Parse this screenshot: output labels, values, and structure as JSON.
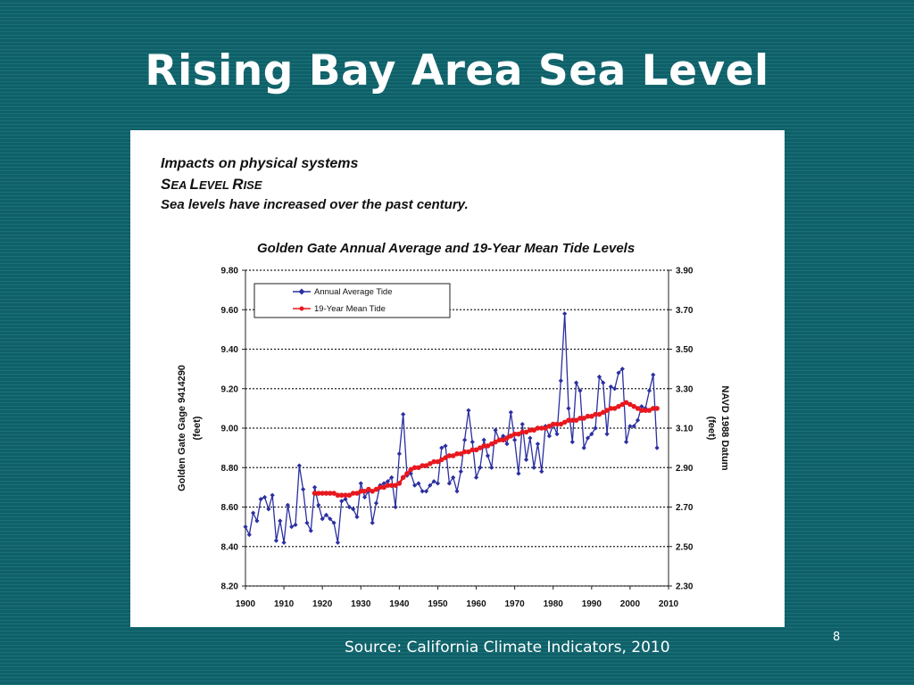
{
  "slide": {
    "title": "Rising Bay Area Sea Level",
    "source": "Source: California Climate Indicators, 2010",
    "page_number": "8"
  },
  "panel": {
    "heading1": "Impacts on physical systems",
    "heading2_part1": "S",
    "heading2_part2": "EA ",
    "heading2_part3": "L",
    "heading2_part4": "EVEL ",
    "heading2_part5": "R",
    "heading2_part6": "ISE",
    "subheading": "Sea levels have increased over the past century."
  },
  "colors": {
    "background": "#0f6068",
    "annual_series": "#2b2fa0",
    "mean_series": "#e8181e"
  },
  "chart_data": {
    "type": "line",
    "title": "Golden Gate Annual Average and 19-Year Mean Tide Levels",
    "ylabel": "Golden Gate Gage 9414290",
    "ylabel_unit": "(feet)",
    "y2label": "NAVD 1988 Datum",
    "y2label_unit": "(feet)",
    "xlim": [
      1900,
      2010
    ],
    "ylim": [
      8.2,
      9.8
    ],
    "y2lim": [
      2.3,
      3.9
    ],
    "x_ticks": [
      "1900",
      "1910",
      "1920",
      "1930",
      "1940",
      "1950",
      "1960",
      "1970",
      "1980",
      "1990",
      "2000",
      "2010"
    ],
    "y_ticks": [
      "9.80",
      "9.60",
      "9.40",
      "9.20",
      "9.00",
      "8.80",
      "8.60",
      "8.40",
      "8.20"
    ],
    "y2_ticks": [
      "3.90",
      "3.70",
      "3.50",
      "3.30",
      "3.10",
      "2.90",
      "2.70",
      "2.50",
      "2.30"
    ],
    "gridlines": "dotted horizontal",
    "legend_position": "top-left",
    "series": [
      {
        "name": "Annual Average Tide",
        "marker": "diamond",
        "x": [
          1900,
          1901,
          1902,
          1903,
          1904,
          1905,
          1906,
          1907,
          1908,
          1909,
          1910,
          1911,
          1912,
          1913,
          1914,
          1915,
          1916,
          1917,
          1918,
          1919,
          1920,
          1921,
          1922,
          1923,
          1924,
          1925,
          1926,
          1927,
          1928,
          1929,
          1930,
          1931,
          1932,
          1933,
          1934,
          1935,
          1936,
          1937,
          1938,
          1939,
          1940,
          1941,
          1942,
          1943,
          1944,
          1945,
          1946,
          1947,
          1948,
          1949,
          1950,
          1951,
          1952,
          1953,
          1954,
          1955,
          1956,
          1957,
          1958,
          1959,
          1960,
          1961,
          1962,
          1963,
          1964,
          1965,
          1966,
          1967,
          1968,
          1969,
          1970,
          1971,
          1972,
          1973,
          1974,
          1975,
          1976,
          1977,
          1978,
          1979,
          1980,
          1981,
          1982,
          1983,
          1984,
          1985,
          1986,
          1987,
          1988,
          1989,
          1990,
          1991,
          1992,
          1993,
          1994,
          1995,
          1996,
          1997,
          1998,
          1999,
          2000,
          2001,
          2002,
          2003,
          2004,
          2005,
          2006,
          2007
        ],
        "y": [
          8.5,
          8.46,
          8.57,
          8.53,
          8.64,
          8.65,
          8.59,
          8.66,
          8.43,
          8.53,
          8.42,
          8.61,
          8.5,
          8.51,
          8.81,
          8.69,
          8.52,
          8.48,
          8.7,
          8.61,
          8.54,
          8.56,
          8.54,
          8.52,
          8.42,
          8.63,
          8.64,
          8.6,
          8.59,
          8.55,
          8.72,
          8.65,
          8.68,
          8.52,
          8.62,
          8.71,
          8.72,
          8.73,
          8.75,
          8.6,
          8.87,
          9.07,
          8.76,
          8.77,
          8.71,
          8.72,
          8.68,
          8.68,
          8.71,
          8.73,
          8.72,
          8.9,
          8.91,
          8.72,
          8.75,
          8.68,
          8.78,
          8.94,
          9.09,
          8.93,
          8.75,
          8.8,
          8.94,
          8.86,
          8.8,
          8.99,
          8.94,
          8.96,
          8.92,
          9.08,
          8.94,
          8.77,
          9.02,
          8.84,
          8.95,
          8.8,
          8.92,
          8.78,
          9.01,
          8.96,
          9.02,
          8.97,
          9.24,
          9.58,
          9.1,
          8.93,
          9.23,
          9.19,
          8.9,
          8.95,
          8.97,
          9.0,
          9.26,
          9.23,
          8.97,
          9.21,
          9.2,
          9.28,
          9.3,
          8.93,
          9.01,
          9.01,
          9.04,
          9.11,
          9.1,
          9.19,
          9.27,
          8.9
        ]
      },
      {
        "name": "19-Year Mean Tide",
        "marker": "circle",
        "x": [
          1918,
          1919,
          1920,
          1921,
          1922,
          1923,
          1924,
          1925,
          1926,
          1927,
          1928,
          1929,
          1930,
          1931,
          1932,
          1933,
          1934,
          1935,
          1936,
          1937,
          1938,
          1939,
          1940,
          1941,
          1942,
          1943,
          1944,
          1945,
          1946,
          1947,
          1948,
          1949,
          1950,
          1951,
          1952,
          1953,
          1954,
          1955,
          1956,
          1957,
          1958,
          1959,
          1960,
          1961,
          1962,
          1963,
          1964,
          1965,
          1966,
          1967,
          1968,
          1969,
          1970,
          1971,
          1972,
          1973,
          1974,
          1975,
          1976,
          1977,
          1978,
          1979,
          1980,
          1981,
          1982,
          1983,
          1984,
          1985,
          1986,
          1987,
          1988,
          1989,
          1990,
          1991,
          1992,
          1993,
          1994,
          1995,
          1996,
          1997,
          1998,
          1999,
          2000,
          2001,
          2002,
          2003,
          2004,
          2005,
          2006,
          2007
        ],
        "y": [
          8.67,
          8.67,
          8.67,
          8.67,
          8.67,
          8.67,
          8.66,
          8.66,
          8.66,
          8.66,
          8.67,
          8.67,
          8.68,
          8.68,
          8.69,
          8.68,
          8.69,
          8.7,
          8.7,
          8.71,
          8.71,
          8.71,
          8.72,
          8.75,
          8.77,
          8.79,
          8.8,
          8.8,
          8.81,
          8.81,
          8.82,
          8.83,
          8.83,
          8.84,
          8.85,
          8.86,
          8.86,
          8.87,
          8.87,
          8.88,
          8.88,
          8.89,
          8.89,
          8.9,
          8.91,
          8.91,
          8.92,
          8.93,
          8.94,
          8.94,
          8.95,
          8.96,
          8.97,
          8.97,
          8.98,
          8.98,
          8.99,
          8.99,
          9.0,
          9.0,
          9.0,
          9.01,
          9.02,
          9.02,
          9.02,
          9.03,
          9.04,
          9.04,
          9.04,
          9.05,
          9.05,
          9.06,
          9.06,
          9.07,
          9.07,
          9.08,
          9.09,
          9.1,
          9.1,
          9.11,
          9.12,
          9.13,
          9.12,
          9.11,
          9.1,
          9.09,
          9.09,
          9.09,
          9.1,
          9.1
        ]
      }
    ]
  }
}
